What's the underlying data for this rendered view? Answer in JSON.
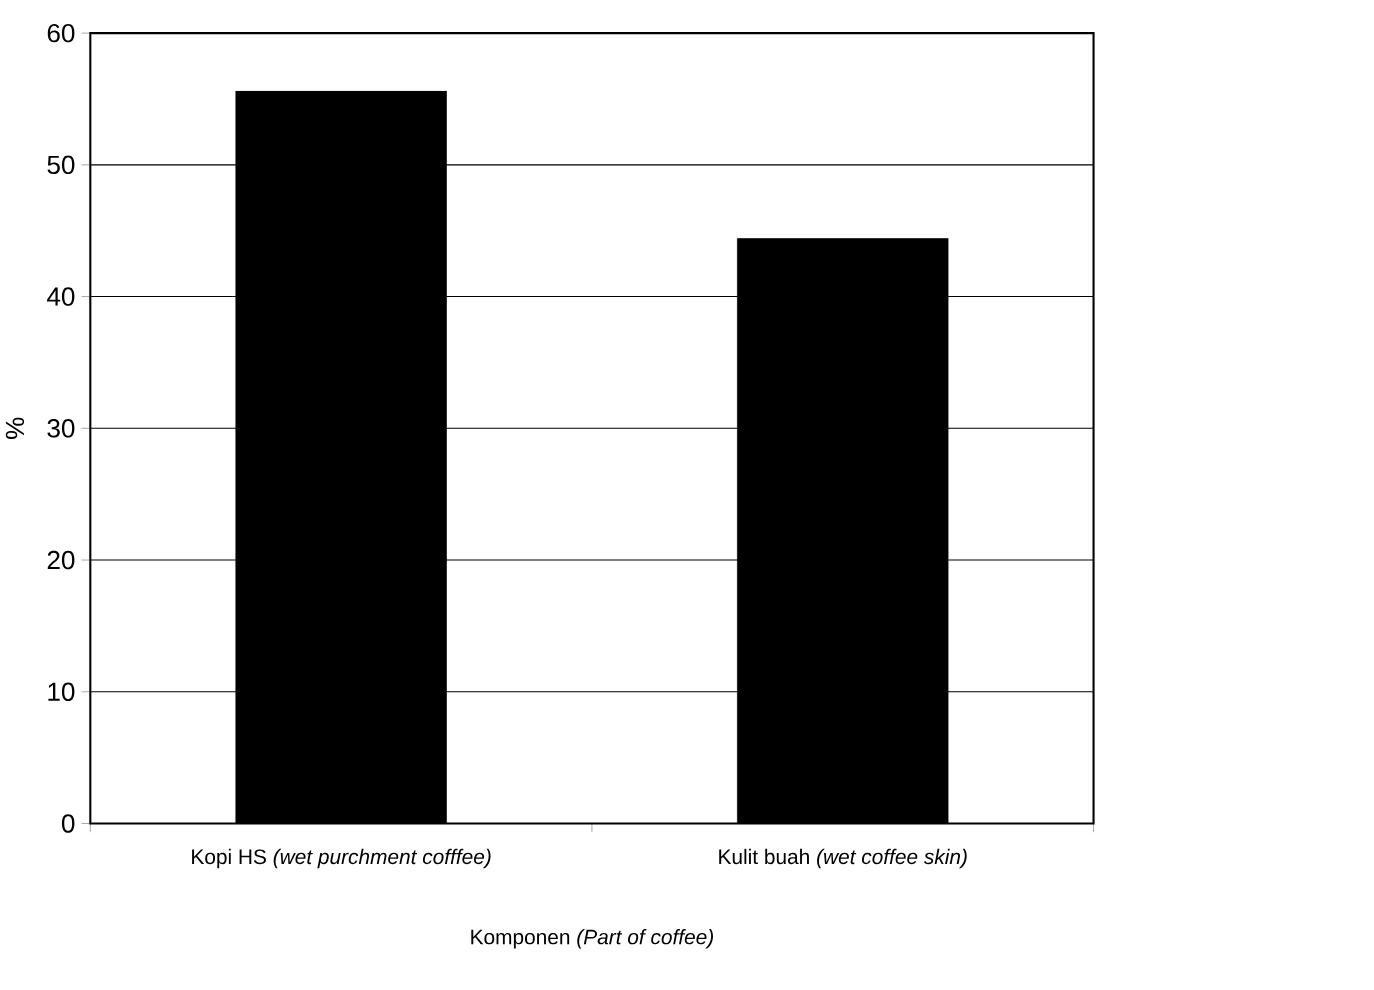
{
  "chart_data": {
    "type": "bar",
    "categories": [
      "Kopi HS *(wet purchment cofffee)*",
      "Kulit buah *(wet coffee skin)*"
    ],
    "values": [
      55.6,
      44.4
    ],
    "color": "#000000",
    "xlabel": "Komponen *(Part of coffee)*",
    "ylabel": "%",
    "ylim": [
      0,
      60
    ],
    "yticks": [
      0,
      10,
      20,
      30,
      40,
      50,
      60
    ],
    "grid": "y"
  }
}
